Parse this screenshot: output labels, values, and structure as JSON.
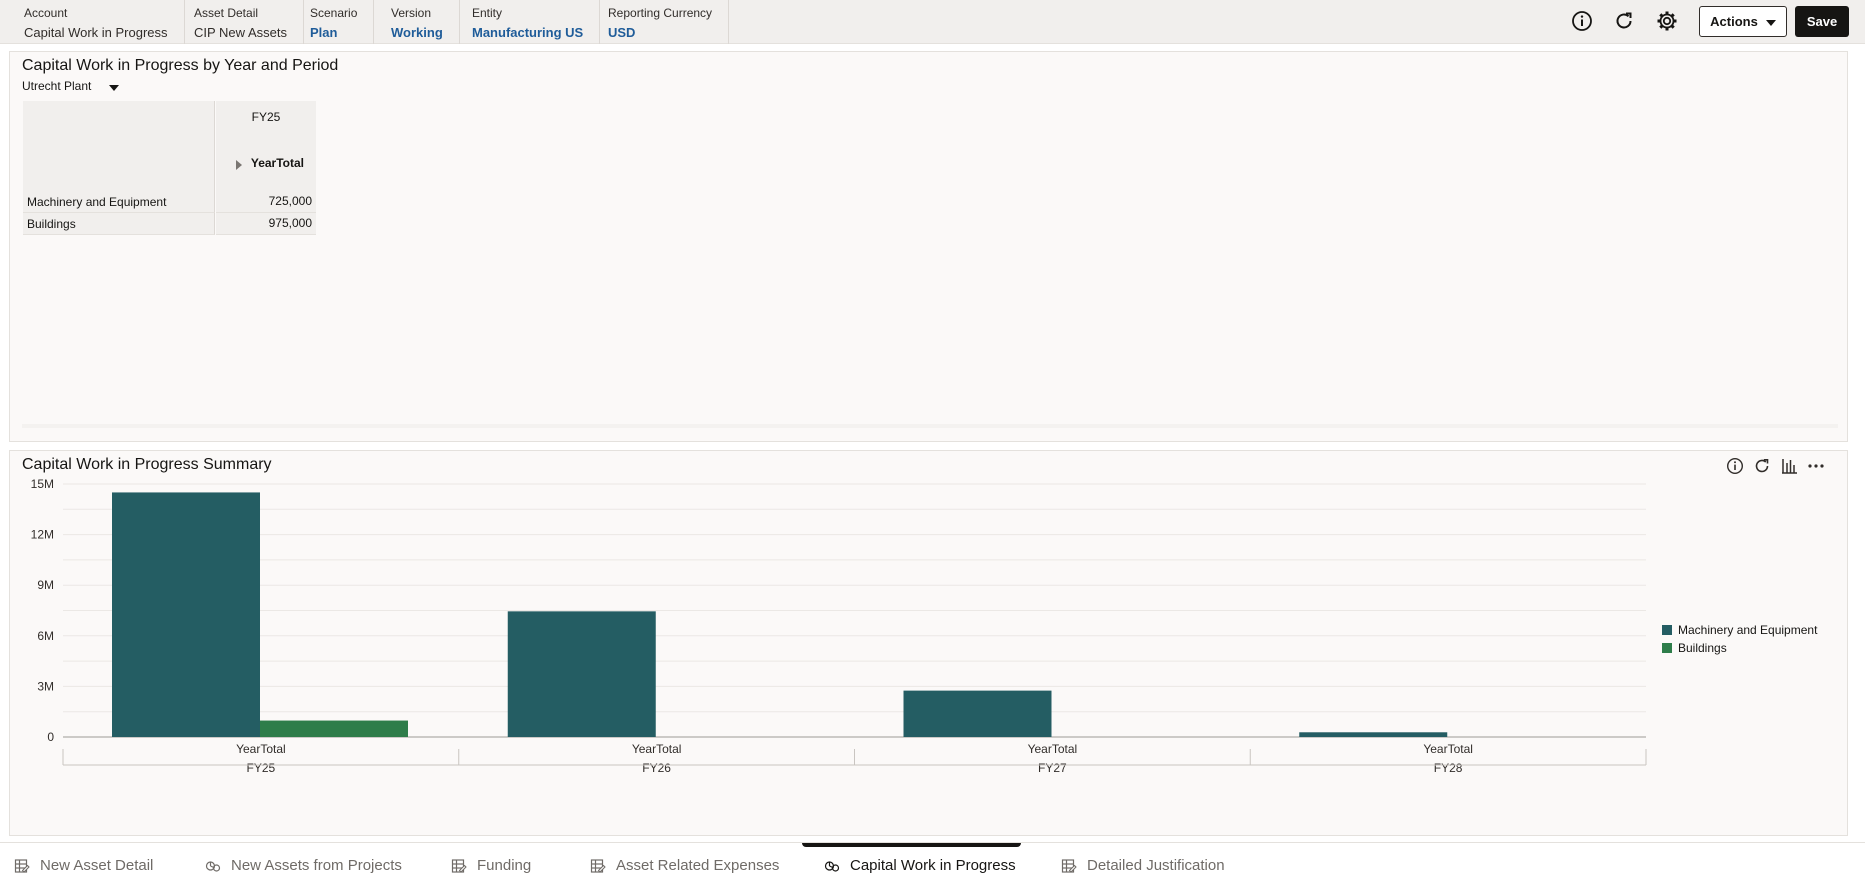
{
  "pov": [
    {
      "label": "Account",
      "value": "Capital Work in Progress",
      "link": false
    },
    {
      "label": "Asset Detail",
      "value": "CIP New Assets",
      "link": false
    },
    {
      "label": "Scenario",
      "value": "Plan",
      "link": true
    },
    {
      "label": "Version",
      "value": "Working",
      "link": true
    },
    {
      "label": "Entity",
      "value": "Manufacturing US",
      "link": true
    },
    {
      "label": "Reporting Currency",
      "value": "USD",
      "link": true
    }
  ],
  "toolbar": {
    "actions_label": "Actions",
    "save_label": "Save",
    "icons": [
      "info-icon",
      "refresh-icon",
      "gear-icon"
    ]
  },
  "grid_panel": {
    "title": "Capital Work in Progress by Year and Period",
    "member_select": "Utrecht Plant",
    "col_year": "FY25",
    "col_period": "YearTotal",
    "rows": [
      {
        "label": "Machinery and Equipment",
        "value": "725,000"
      },
      {
        "label": "Buildings",
        "value": "975,000"
      }
    ]
  },
  "chart_panel": {
    "title": "Capital Work in Progress Summary",
    "tool_icons": [
      "info-icon",
      "refresh-icon",
      "bar-chart-icon",
      "more-icon"
    ]
  },
  "chart_data": {
    "type": "bar",
    "categories": [
      "FY25",
      "FY26",
      "FY27",
      "FY28"
    ],
    "sub_categories": [
      "YearTotal",
      "YearTotal",
      "YearTotal",
      "YearTotal"
    ],
    "series": [
      {
        "name": "Machinery and Equipment",
        "color": "#245d63",
        "values": [
          14500000,
          7450000,
          2750000,
          280000
        ]
      },
      {
        "name": "Buildings",
        "color": "#2e7d4a",
        "values": [
          975000,
          0,
          0,
          0
        ]
      }
    ],
    "yticks": [
      "0",
      "3M",
      "6M",
      "9M",
      "12M",
      "15M"
    ],
    "ylim": [
      0,
      15000000
    ],
    "grid": true,
    "legend": "right"
  },
  "tabs": [
    {
      "label": "New Asset Detail",
      "icon": "form-icon",
      "active": false
    },
    {
      "label": "New Assets from Projects",
      "icon": "dashboard-icon",
      "active": false
    },
    {
      "label": "Funding",
      "icon": "form-icon",
      "active": false
    },
    {
      "label": "Asset Related Expenses",
      "icon": "form-icon",
      "active": false
    },
    {
      "label": "Capital Work in Progress",
      "icon": "dashboard-icon",
      "active": true
    },
    {
      "label": "Detailed Justification",
      "icon": "form-icon",
      "active": false
    }
  ]
}
